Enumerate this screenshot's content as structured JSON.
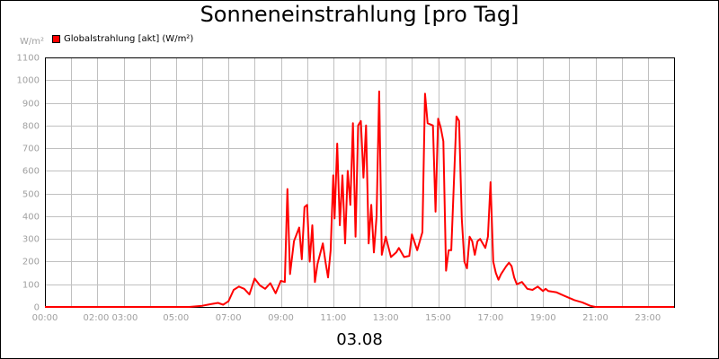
{
  "chart_data": {
    "type": "line",
    "title": "Sonneneinstrahlung [pro Tag]",
    "ylabel": "W/m²",
    "xlabel": "03.08",
    "ylim": [
      0,
      1100
    ],
    "xlim": [
      0,
      24
    ],
    "grid": true,
    "legend_position": "top-left",
    "y_ticks": [
      "0",
      "100",
      "200",
      "300",
      "400",
      "500",
      "600",
      "700",
      "800",
      "900",
      "1000",
      "1100"
    ],
    "x_tick_labels": [
      "00:00",
      "02:00 03:00",
      "05:00",
      "07:00",
      "09:00",
      "11:00",
      "13:00",
      "15:00",
      "17:00",
      "19:00",
      "21:00",
      "23:00"
    ],
    "series": [
      {
        "name": "Globalstrahlung [akt] (W/m²)",
        "color": "#ff0000",
        "x": [
          0,
          5.5,
          6.0,
          6.3,
          6.6,
          6.8,
          7.0,
          7.2,
          7.4,
          7.6,
          7.8,
          8.0,
          8.2,
          8.4,
          8.6,
          8.8,
          9.0,
          9.15,
          9.25,
          9.35,
          9.5,
          9.7,
          9.8,
          9.9,
          10.0,
          10.1,
          10.2,
          10.3,
          10.4,
          10.6,
          10.7,
          10.8,
          10.9,
          11.0,
          11.05,
          11.15,
          11.25,
          11.35,
          11.45,
          11.55,
          11.65,
          11.75,
          11.85,
          11.95,
          12.05,
          12.15,
          12.25,
          12.35,
          12.45,
          12.55,
          12.65,
          12.75,
          12.85,
          13.0,
          13.2,
          13.4,
          13.5,
          13.7,
          13.9,
          14.0,
          14.2,
          14.4,
          14.5,
          14.6,
          14.8,
          14.9,
          15.0,
          15.1,
          15.2,
          15.3,
          15.4,
          15.5,
          15.7,
          15.8,
          15.9,
          16.0,
          16.1,
          16.2,
          16.3,
          16.4,
          16.5,
          16.6,
          16.8,
          16.9,
          17.0,
          17.1,
          17.2,
          17.3,
          17.4,
          17.6,
          17.7,
          17.8,
          17.9,
          18.0,
          18.2,
          18.4,
          18.6,
          18.8,
          19.0,
          19.1,
          19.2,
          19.5,
          19.8,
          20.0,
          20.2,
          20.5,
          20.8,
          21.0,
          21.5,
          22,
          23,
          24
        ],
        "values": [
          0,
          0,
          5,
          12,
          18,
          10,
          25,
          75,
          90,
          80,
          55,
          125,
          95,
          80,
          105,
          60,
          115,
          110,
          520,
          145,
          290,
          350,
          210,
          440,
          450,
          200,
          360,
          110,
          190,
          280,
          200,
          130,
          250,
          580,
          390,
          720,
          360,
          580,
          280,
          600,
          450,
          810,
          310,
          800,
          820,
          570,
          800,
          280,
          450,
          240,
          400,
          950,
          230,
          310,
          220,
          240,
          260,
          220,
          225,
          320,
          250,
          330,
          940,
          810,
          800,
          420,
          830,
          790,
          730,
          160,
          250,
          250,
          840,
          820,
          390,
          200,
          170,
          310,
          290,
          230,
          290,
          300,
          260,
          310,
          550,
          200,
          150,
          120,
          145,
          180,
          195,
          180,
          130,
          100,
          110,
          80,
          75,
          90,
          70,
          80,
          70,
          65,
          50,
          40,
          30,
          20,
          5,
          0,
          0,
          0,
          0,
          0
        ]
      }
    ]
  }
}
